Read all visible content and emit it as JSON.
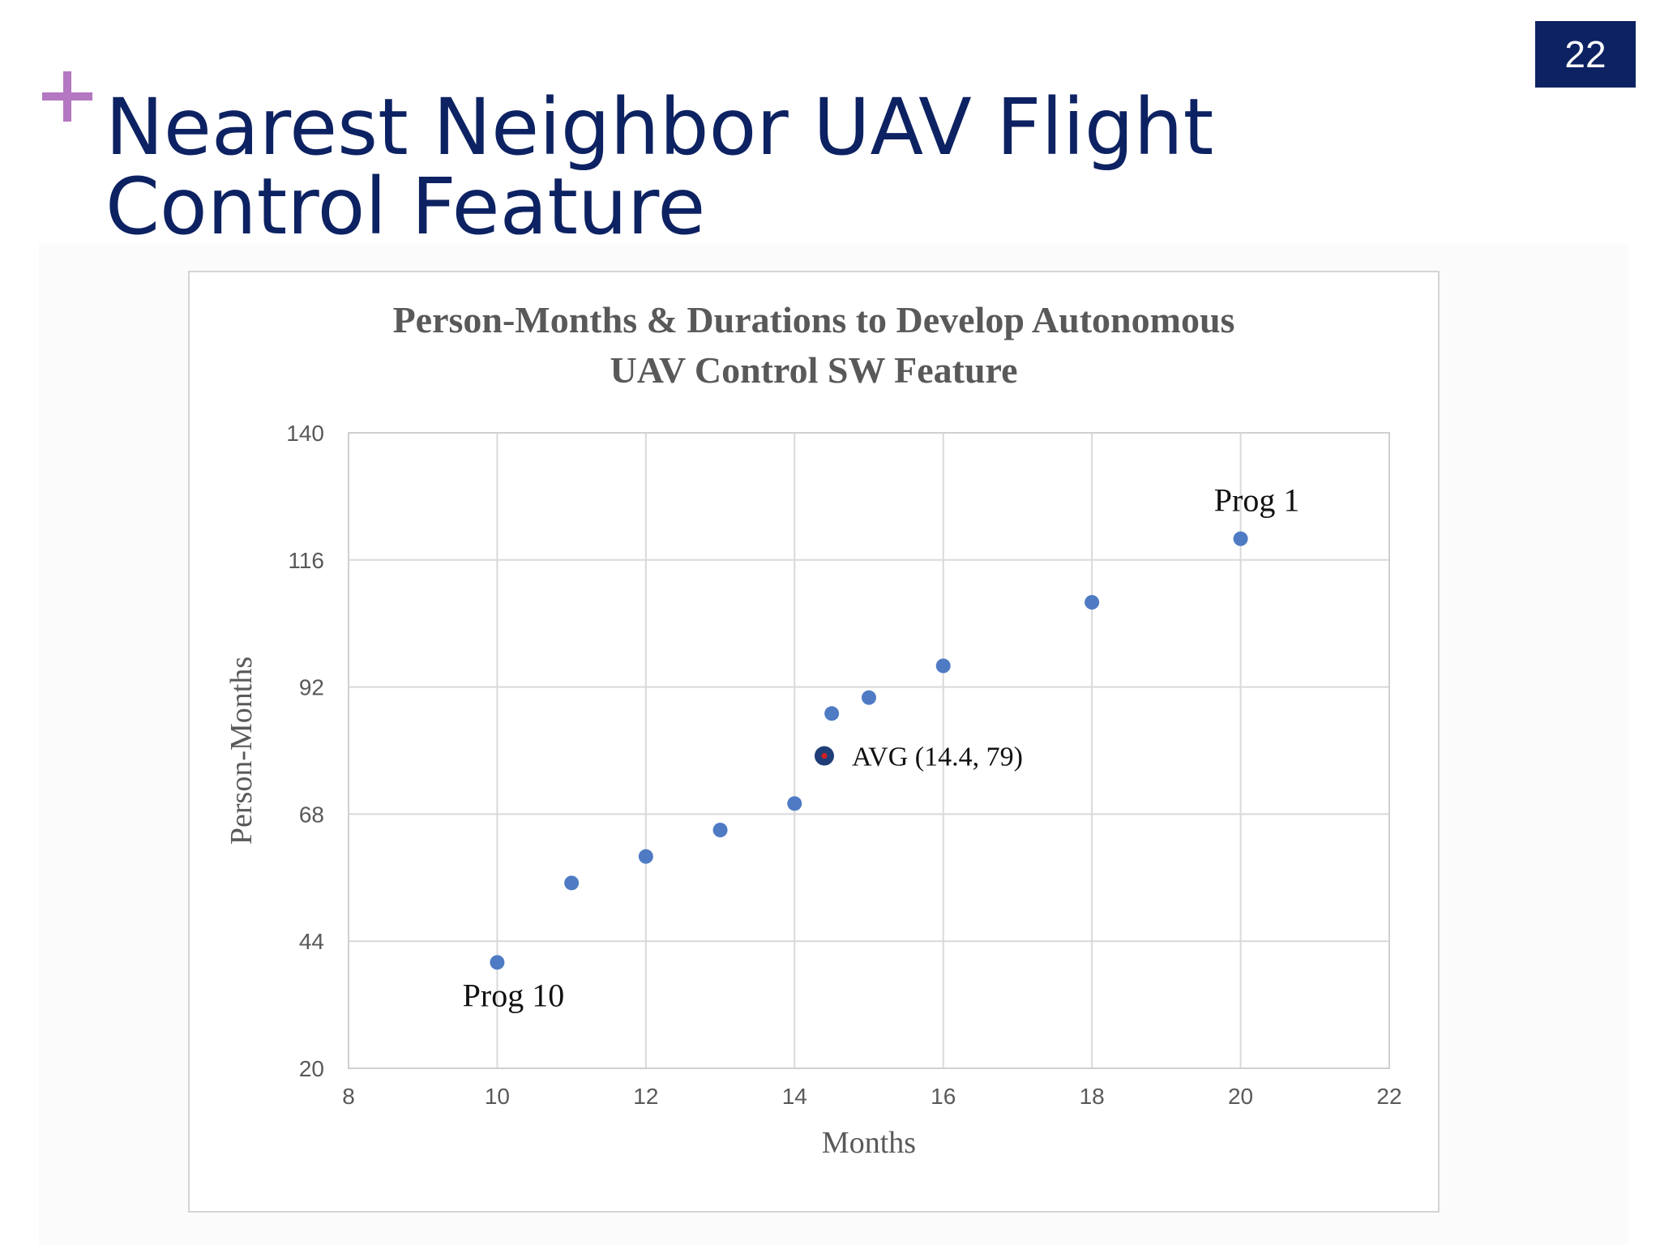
{
  "slide": {
    "title_line1": "Nearest Neighbor UAV Flight",
    "title_line2": "Control Feature",
    "page_number": "22",
    "accent_color": "#b477c2",
    "title_color": "#0d2262"
  },
  "chart_data": {
    "type": "scatter",
    "title_line1": "Person-Months & Durations to Develop Autonomous",
    "title_line2": "UAV Control SW Feature",
    "xlabel": "Months",
    "ylabel": "Person-Months",
    "xlim": [
      8,
      22
    ],
    "ylim": [
      20,
      140
    ],
    "xticks": [
      8,
      10,
      12,
      14,
      16,
      18,
      20,
      22
    ],
    "yticks": [
      20,
      44,
      68,
      92,
      116,
      140
    ],
    "grid": true,
    "point_color": "#4f7bc4",
    "avg_marker_color": "#1f3e78",
    "avg_center_color": "#d42020",
    "series": [
      {
        "values": [
          [
            10,
            40
          ],
          [
            11,
            55
          ],
          [
            12,
            60
          ],
          [
            13,
            65
          ],
          [
            14,
            70
          ],
          [
            14.5,
            87
          ],
          [
            15,
            90
          ],
          [
            16,
            96
          ],
          [
            18,
            108
          ],
          [
            20,
            120
          ]
        ]
      }
    ],
    "average": {
      "x": 14.4,
      "y": 79
    },
    "annotations": [
      {
        "text": "Prog 1",
        "x": 20,
        "y": 120
      },
      {
        "text": "Prog 10",
        "x": 10,
        "y": 40
      },
      {
        "text": "AVG (14.4,  79)",
        "x": 14.4,
        "y": 79
      }
    ]
  }
}
